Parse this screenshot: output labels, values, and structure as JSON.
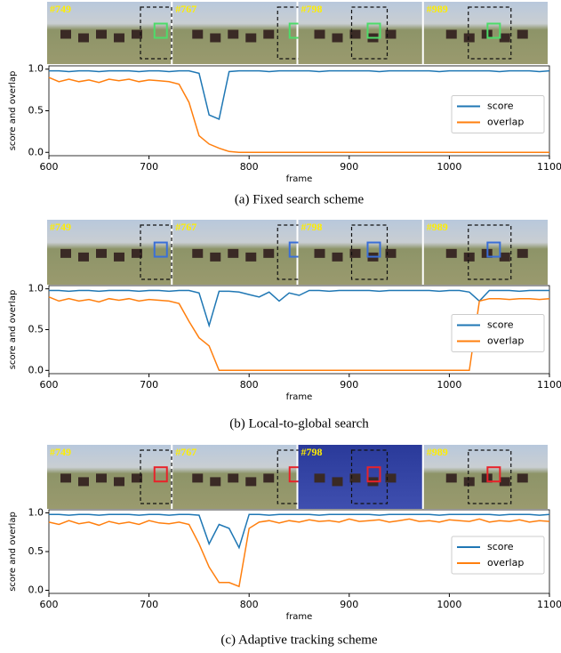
{
  "chart_data": [
    {
      "type": "line",
      "caption": "(a) Fixed search scheme",
      "frame_labels": [
        "#749",
        "#767",
        "#798",
        "#989"
      ],
      "x_label": "frame",
      "y_label": "score and overlap",
      "x": [
        600,
        610,
        620,
        630,
        640,
        650,
        660,
        670,
        680,
        690,
        700,
        710,
        720,
        730,
        740,
        750,
        760,
        770,
        780,
        790,
        800,
        810,
        820,
        830,
        840,
        850,
        860,
        870,
        880,
        890,
        900,
        910,
        920,
        930,
        940,
        950,
        960,
        970,
        980,
        990,
        1000,
        1010,
        1020,
        1030,
        1040,
        1050,
        1060,
        1070,
        1080,
        1090,
        1100
      ],
      "series": [
        {
          "name": "score",
          "color": "#1f77b4",
          "values": [
            0.98,
            0.98,
            0.97,
            0.98,
            0.98,
            0.97,
            0.98,
            0.98,
            0.98,
            0.97,
            0.98,
            0.98,
            0.97,
            0.98,
            0.98,
            0.95,
            0.45,
            0.4,
            0.97,
            0.98,
            0.98,
            0.98,
            0.97,
            0.98,
            0.98,
            0.98,
            0.98,
            0.97,
            0.98,
            0.98,
            0.98,
            0.98,
            0.98,
            0.97,
            0.98,
            0.98,
            0.98,
            0.98,
            0.98,
            0.97,
            0.98,
            0.98,
            0.98,
            0.98,
            0.98,
            0.97,
            0.98,
            0.98,
            0.98,
            0.97,
            0.98
          ]
        },
        {
          "name": "overlap",
          "color": "#ff7f0e",
          "values": [
            0.9,
            0.85,
            0.88,
            0.85,
            0.87,
            0.84,
            0.88,
            0.86,
            0.88,
            0.85,
            0.87,
            0.86,
            0.85,
            0.82,
            0.6,
            0.2,
            0.1,
            0.05,
            0.01,
            0,
            0,
            0,
            0,
            0,
            0,
            0,
            0,
            0,
            0,
            0,
            0,
            0,
            0,
            0,
            0,
            0,
            0,
            0,
            0,
            0,
            0,
            0,
            0,
            0,
            0,
            0,
            0,
            0,
            0,
            0,
            0
          ]
        }
      ],
      "xlim": [
        600,
        1100
      ],
      "xticks": [
        600,
        700,
        800,
        900,
        1000,
        1100
      ],
      "ylim": [
        -0.04,
        1.04
      ],
      "yticks": [
        {
          "value": 0,
          "label": "0.0"
        },
        {
          "value": 0.5,
          "label": "0.5"
        },
        {
          "value": 1,
          "label": "1.0"
        }
      ],
      "legend": "right"
    },
    {
      "type": "line",
      "caption": "(b) Local-to-global search",
      "frame_labels": [
        "#749",
        "#767",
        "#798",
        "#989"
      ],
      "x_label": "frame",
      "y_label": "score and overlap",
      "x": [
        600,
        610,
        620,
        630,
        640,
        650,
        660,
        670,
        680,
        690,
        700,
        710,
        720,
        730,
        740,
        750,
        760,
        770,
        780,
        790,
        800,
        810,
        820,
        830,
        840,
        850,
        860,
        870,
        880,
        890,
        900,
        910,
        920,
        930,
        940,
        950,
        960,
        970,
        980,
        990,
        1000,
        1010,
        1020,
        1030,
        1040,
        1050,
        1060,
        1070,
        1080,
        1090,
        1100
      ],
      "series": [
        {
          "name": "score",
          "color": "#1f77b4",
          "values": [
            0.98,
            0.98,
            0.97,
            0.98,
            0.98,
            0.97,
            0.98,
            0.98,
            0.98,
            0.97,
            0.98,
            0.98,
            0.97,
            0.98,
            0.98,
            0.95,
            0.55,
            0.97,
            0.97,
            0.96,
            0.93,
            0.9,
            0.96,
            0.85,
            0.95,
            0.92,
            0.98,
            0.98,
            0.97,
            0.98,
            0.98,
            0.98,
            0.98,
            0.97,
            0.98,
            0.98,
            0.98,
            0.98,
            0.98,
            0.97,
            0.98,
            0.98,
            0.96,
            0.85,
            0.98,
            0.98,
            0.98,
            0.97,
            0.98,
            0.98,
            0.98
          ]
        },
        {
          "name": "overlap",
          "color": "#ff7f0e",
          "values": [
            0.9,
            0.85,
            0.88,
            0.85,
            0.87,
            0.84,
            0.88,
            0.86,
            0.88,
            0.85,
            0.87,
            0.86,
            0.85,
            0.82,
            0.6,
            0.4,
            0.3,
            0,
            0,
            0,
            0,
            0,
            0,
            0,
            0,
            0,
            0,
            0,
            0,
            0,
            0,
            0,
            0,
            0,
            0,
            0,
            0,
            0,
            0,
            0,
            0,
            0,
            0,
            0.85,
            0.88,
            0.88,
            0.87,
            0.88,
            0.88,
            0.87,
            0.88
          ]
        }
      ],
      "xlim": [
        600,
        1100
      ],
      "xticks": [
        600,
        700,
        800,
        900,
        1000,
        1100
      ],
      "ylim": [
        -0.04,
        1.04
      ],
      "yticks": [
        {
          "value": 0,
          "label": "0.0"
        },
        {
          "value": 0.5,
          "label": "0.5"
        },
        {
          "value": 1,
          "label": "1.0"
        }
      ],
      "legend": "right"
    },
    {
      "type": "line",
      "caption": "(c) Adaptive tracking scheme",
      "frame_labels": [
        "#749",
        "#767",
        "#798",
        "#989"
      ],
      "x_label": "frame",
      "y_label": "score and overlap",
      "x": [
        600,
        610,
        620,
        630,
        640,
        650,
        660,
        670,
        680,
        690,
        700,
        710,
        720,
        730,
        740,
        750,
        760,
        770,
        780,
        790,
        800,
        810,
        820,
        830,
        840,
        850,
        860,
        870,
        880,
        890,
        900,
        910,
        920,
        930,
        940,
        950,
        960,
        970,
        980,
        990,
        1000,
        1010,
        1020,
        1030,
        1040,
        1050,
        1060,
        1070,
        1080,
        1090,
        1100
      ],
      "series": [
        {
          "name": "score",
          "color": "#1f77b4",
          "values": [
            0.98,
            0.98,
            0.97,
            0.98,
            0.98,
            0.97,
            0.98,
            0.98,
            0.98,
            0.97,
            0.98,
            0.98,
            0.97,
            0.98,
            0.98,
            0.97,
            0.6,
            0.85,
            0.8,
            0.55,
            0.98,
            0.98,
            0.97,
            0.98,
            0.98,
            0.98,
            0.98,
            0.97,
            0.98,
            0.98,
            0.98,
            0.98,
            0.98,
            0.97,
            0.98,
            0.98,
            0.98,
            0.98,
            0.98,
            0.97,
            0.98,
            0.98,
            0.98,
            0.98,
            0.98,
            0.97,
            0.98,
            0.98,
            0.98,
            0.97,
            0.98
          ]
        },
        {
          "name": "overlap",
          "color": "#ff7f0e",
          "values": [
            0.88,
            0.85,
            0.9,
            0.86,
            0.88,
            0.84,
            0.89,
            0.86,
            0.88,
            0.85,
            0.9,
            0.87,
            0.86,
            0.88,
            0.85,
            0.6,
            0.3,
            0.1,
            0.1,
            0.05,
            0.8,
            0.88,
            0.9,
            0.87,
            0.9,
            0.88,
            0.91,
            0.89,
            0.9,
            0.88,
            0.92,
            0.89,
            0.9,
            0.91,
            0.88,
            0.9,
            0.92,
            0.89,
            0.9,
            0.88,
            0.91,
            0.9,
            0.89,
            0.92,
            0.88,
            0.9,
            0.89,
            0.91,
            0.88,
            0.9,
            0.89
          ]
        }
      ],
      "xlim": [
        600,
        1100
      ],
      "xticks": [
        600,
        700,
        800,
        900,
        1000,
        1100
      ],
      "ylim": [
        -0.04,
        1.04
      ],
      "yticks": [
        {
          "value": 0,
          "label": "0.0"
        },
        {
          "value": 0.5,
          "label": "0.5"
        },
        {
          "value": 1,
          "label": "1.0"
        }
      ],
      "legend": "right"
    }
  ]
}
